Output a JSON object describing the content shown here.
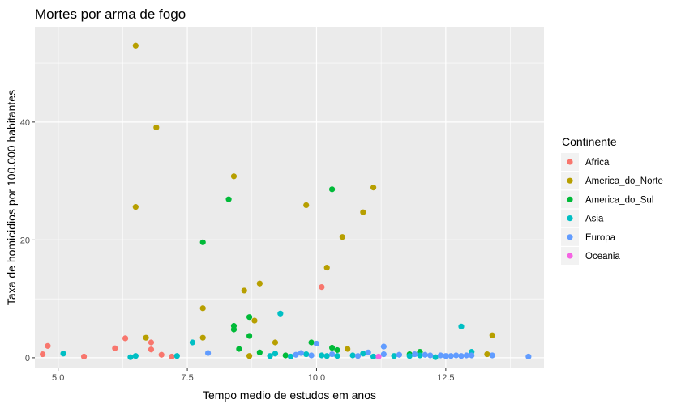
{
  "chart_data": {
    "type": "scatter",
    "title": "Mortes por arma de fogo",
    "xlabel": "Tempo medio de estudos em anos",
    "ylabel": "Taxa de homicidios por 100.000 habitantes",
    "xlim": [
      4.55,
      14.4
    ],
    "ylim": [
      -1.8,
      56.2
    ],
    "x_ticks": [
      {
        "value": 5.0,
        "label": "5.0"
      },
      {
        "value": 7.5,
        "label": "7.5"
      },
      {
        "value": 10.0,
        "label": "10.0"
      },
      {
        "value": 12.5,
        "label": "12.5"
      }
    ],
    "y_ticks": [
      {
        "value": 0,
        "label": "0"
      },
      {
        "value": 20,
        "label": "20"
      },
      {
        "value": 40,
        "label": "40"
      }
    ],
    "grid": true,
    "legend": {
      "title": "Continente",
      "position": "right"
    },
    "series": [
      {
        "name": "Africa",
        "color": "#F8766D",
        "points": [
          [
            4.7,
            0.6
          ],
          [
            4.8,
            2.0
          ],
          [
            5.5,
            0.2
          ],
          [
            6.1,
            1.6
          ],
          [
            6.3,
            3.3
          ],
          [
            6.8,
            2.6
          ],
          [
            6.8,
            1.4
          ],
          [
            7.0,
            0.5
          ],
          [
            7.2,
            0.2
          ],
          [
            10.1,
            12.0
          ]
        ]
      },
      {
        "name": "America_do_Norte",
        "color": "#B79F00",
        "points": [
          [
            6.5,
            53.0
          ],
          [
            6.5,
            25.6
          ],
          [
            6.7,
            3.4
          ],
          [
            6.9,
            39.1
          ],
          [
            7.8,
            8.4
          ],
          [
            7.8,
            3.4
          ],
          [
            8.4,
            30.8
          ],
          [
            8.6,
            11.4
          ],
          [
            8.7,
            0.3
          ],
          [
            8.8,
            6.3
          ],
          [
            8.9,
            12.6
          ],
          [
            9.2,
            2.6
          ],
          [
            9.8,
            25.9
          ],
          [
            10.2,
            15.3
          ],
          [
            10.5,
            20.5
          ],
          [
            10.6,
            1.5
          ],
          [
            10.9,
            24.7
          ],
          [
            11.1,
            28.9
          ],
          [
            13.3,
            0.6
          ],
          [
            13.4,
            3.8
          ]
        ]
      },
      {
        "name": "America_do_Sul",
        "color": "#00BA38",
        "points": [
          [
            7.8,
            19.6
          ],
          [
            8.3,
            26.9
          ],
          [
            8.4,
            5.4
          ],
          [
            8.4,
            4.8
          ],
          [
            8.5,
            1.5
          ],
          [
            8.7,
            6.9
          ],
          [
            8.7,
            3.7
          ],
          [
            8.9,
            0.9
          ],
          [
            9.4,
            0.4
          ],
          [
            9.9,
            2.6
          ],
          [
            10.3,
            28.6
          ],
          [
            10.3,
            1.7
          ],
          [
            10.4,
            1.3
          ],
          [
            11.8,
            0.6
          ],
          [
            12.0,
            1.0
          ]
        ]
      },
      {
        "name": "Asia",
        "color": "#00BFC4",
        "points": [
          [
            5.1,
            0.7
          ],
          [
            6.4,
            0.1
          ],
          [
            6.5,
            0.3
          ],
          [
            7.3,
            0.3
          ],
          [
            7.6,
            2.6
          ],
          [
            9.1,
            0.3
          ],
          [
            9.2,
            0.7
          ],
          [
            9.3,
            7.5
          ],
          [
            9.5,
            0.2
          ],
          [
            9.8,
            0.6
          ],
          [
            10.1,
            0.4
          ],
          [
            10.2,
            0.3
          ],
          [
            10.4,
            0.3
          ],
          [
            10.7,
            0.4
          ],
          [
            10.9,
            0.7
          ],
          [
            11.1,
            0.2
          ],
          [
            11.5,
            0.3
          ],
          [
            11.8,
            0.3
          ],
          [
            12.0,
            0.4
          ],
          [
            12.3,
            0.1
          ],
          [
            12.8,
            5.3
          ],
          [
            13.0,
            1.0
          ]
        ]
      },
      {
        "name": "Europa",
        "color": "#619CFF",
        "points": [
          [
            7.9,
            0.8
          ],
          [
            9.6,
            0.5
          ],
          [
            9.7,
            0.8
          ],
          [
            9.9,
            0.4
          ],
          [
            10.0,
            2.4
          ],
          [
            10.3,
            0.6
          ],
          [
            10.8,
            0.3
          ],
          [
            11.0,
            0.9
          ],
          [
            11.3,
            1.9
          ],
          [
            11.3,
            0.6
          ],
          [
            11.6,
            0.5
          ],
          [
            11.9,
            0.6
          ],
          [
            12.1,
            0.5
          ],
          [
            12.2,
            0.4
          ],
          [
            12.4,
            0.4
          ],
          [
            12.5,
            0.3
          ],
          [
            12.6,
            0.3
          ],
          [
            12.7,
            0.4
          ],
          [
            12.8,
            0.3
          ],
          [
            12.9,
            0.4
          ],
          [
            13.0,
            0.4
          ],
          [
            13.4,
            0.4
          ],
          [
            14.1,
            0.2
          ]
        ]
      },
      {
        "name": "Oceania",
        "color": "#F564E3",
        "points": [
          [
            11.2,
            0.2
          ]
        ]
      }
    ]
  }
}
